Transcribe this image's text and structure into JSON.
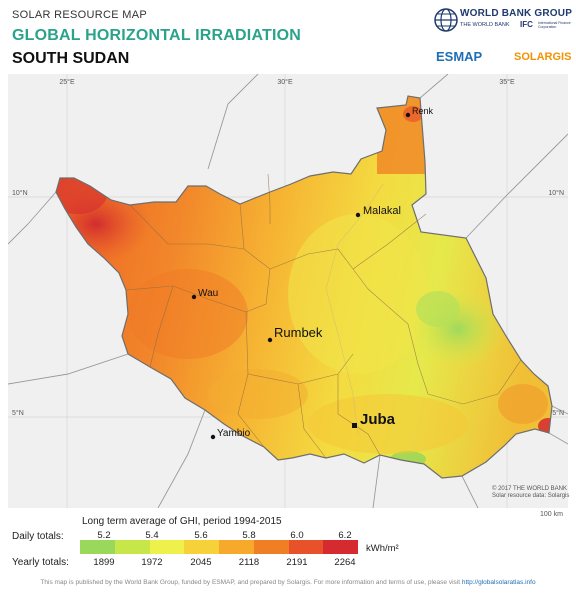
{
  "header": {
    "subtitle": "SOLAR RESOURCE MAP",
    "title": "GLOBAL HORIZONTAL IRRADIATION",
    "country": "SOUTH SUDAN"
  },
  "logos": {
    "world_bank": "WORLD BANK GROUP",
    "world_bank_sub": "THE WORLD BANK",
    "ifc": "IFC",
    "ifc_sub": "International Finance Corporation",
    "esmap": "ESMAP",
    "solargis": "SOLARGIS"
  },
  "map": {
    "graticule_labels": {
      "lon_25": "25°E",
      "lon_30": "30°E",
      "lon_35": "35°E",
      "lat_10_left": "10°N",
      "lat_10_right": "10°N",
      "lat_5_left": "5°N",
      "lat_5_right": "5°N"
    },
    "cities": [
      {
        "name": "Renk"
      },
      {
        "name": "Malakal"
      },
      {
        "name": "Wau"
      },
      {
        "name": "Rumbek"
      },
      {
        "name": "Juba",
        "capital": true
      },
      {
        "name": "Yambio"
      }
    ],
    "copyright": "© 2017 THE WORLD BANK",
    "data_source": "Solar resource data: Solargis",
    "scale_label": "100 km",
    "colors": {
      "sea": "#ffffff",
      "land_outside": "#f2f2f2",
      "border": "#777777"
    }
  },
  "legend": {
    "title": "Long term average of GHI, period 1994-2015",
    "daily_label": "Daily totals:",
    "yearly_label": "Yearly totals:",
    "daily_ticks": [
      "5.2",
      "5.4",
      "5.6",
      "5.8",
      "6.0",
      "6.2"
    ],
    "yearly_ticks": [
      "1899",
      "1972",
      "2045",
      "2118",
      "2191",
      "2264"
    ],
    "unit": "kWh/m²",
    "colors": [
      "#99d85a",
      "#c6e64a",
      "#eef04b",
      "#f7d13a",
      "#f6a92a",
      "#f07e24",
      "#e8522a",
      "#d42a30"
    ]
  },
  "footer": {
    "text": "This map is published by the World Bank Group, funded by ESMAP, and prepared by Solargis. For more information and terms of use, please visit",
    "url": "http://globalsolaratlas.info"
  }
}
